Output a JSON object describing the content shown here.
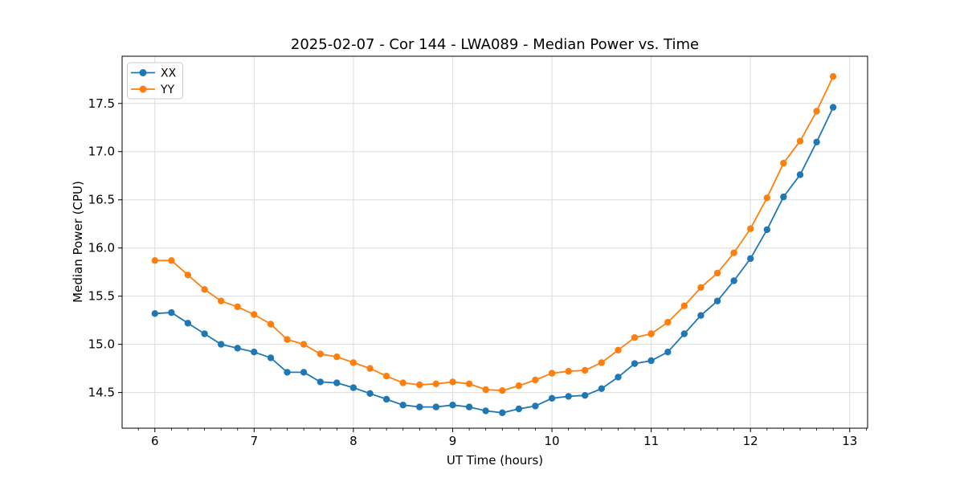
{
  "chart_data": {
    "type": "line",
    "title": "2025-02-07 - Cor 144 - LWA089 - Median Power vs. Time",
    "xlabel": "UT Time (hours)",
    "ylabel": "Median Power (CPU)",
    "xlim": [
      5.67,
      13.18
    ],
    "ylim": [
      14.13,
      17.99
    ],
    "xticks": [
      6,
      7,
      8,
      9,
      10,
      11,
      12,
      13
    ],
    "x_minor_step": 0.16667,
    "yticks": [
      14.5,
      15.0,
      15.5,
      16.0,
      16.5,
      17.0,
      17.5
    ],
    "ytick_labels": [
      "14.5",
      "15.0",
      "15.5",
      "16.0",
      "16.5",
      "17.0",
      "17.5"
    ],
    "grid": true,
    "legend_position": "upper-left",
    "x": [
      6.0,
      6.167,
      6.333,
      6.5,
      6.667,
      6.833,
      7.0,
      7.167,
      7.333,
      7.5,
      7.667,
      7.833,
      8.0,
      8.167,
      8.333,
      8.5,
      8.667,
      8.833,
      9.0,
      9.167,
      9.333,
      9.5,
      9.667,
      9.833,
      10.0,
      10.167,
      10.333,
      10.5,
      10.667,
      10.833,
      11.0,
      11.167,
      11.333,
      11.5,
      11.667,
      11.833,
      12.0,
      12.167,
      12.333,
      12.5,
      12.667,
      12.833
    ],
    "series": [
      {
        "name": "XX",
        "color": "#1f77b4",
        "values": [
          15.32,
          15.33,
          15.22,
          15.11,
          15.0,
          14.96,
          14.92,
          14.86,
          14.71,
          14.71,
          14.61,
          14.6,
          14.55,
          14.49,
          14.43,
          14.37,
          14.35,
          14.35,
          14.37,
          14.35,
          14.31,
          14.29,
          14.33,
          14.36,
          14.44,
          14.46,
          14.47,
          14.54,
          14.66,
          14.8,
          14.83,
          14.92,
          15.11,
          15.3,
          15.45,
          15.66,
          15.89,
          16.19,
          16.53,
          16.76,
          17.1,
          17.46
        ]
      },
      {
        "name": "YY",
        "color": "#ff7f0e",
        "values": [
          15.87,
          15.87,
          15.72,
          15.57,
          15.45,
          15.39,
          15.31,
          15.21,
          15.05,
          15.0,
          14.9,
          14.87,
          14.81,
          14.75,
          14.67,
          14.6,
          14.58,
          14.59,
          14.61,
          14.59,
          14.53,
          14.52,
          14.57,
          14.63,
          14.7,
          14.72,
          14.73,
          14.81,
          14.94,
          15.07,
          15.11,
          15.23,
          15.4,
          15.59,
          15.74,
          15.95,
          16.2,
          16.52,
          16.88,
          17.11,
          17.42,
          17.78
        ]
      }
    ],
    "style": {
      "grid_color": "#dcdcdc",
      "spine_color": "#000000",
      "tick_label_color": "#000000",
      "background": "#ffffff"
    }
  }
}
